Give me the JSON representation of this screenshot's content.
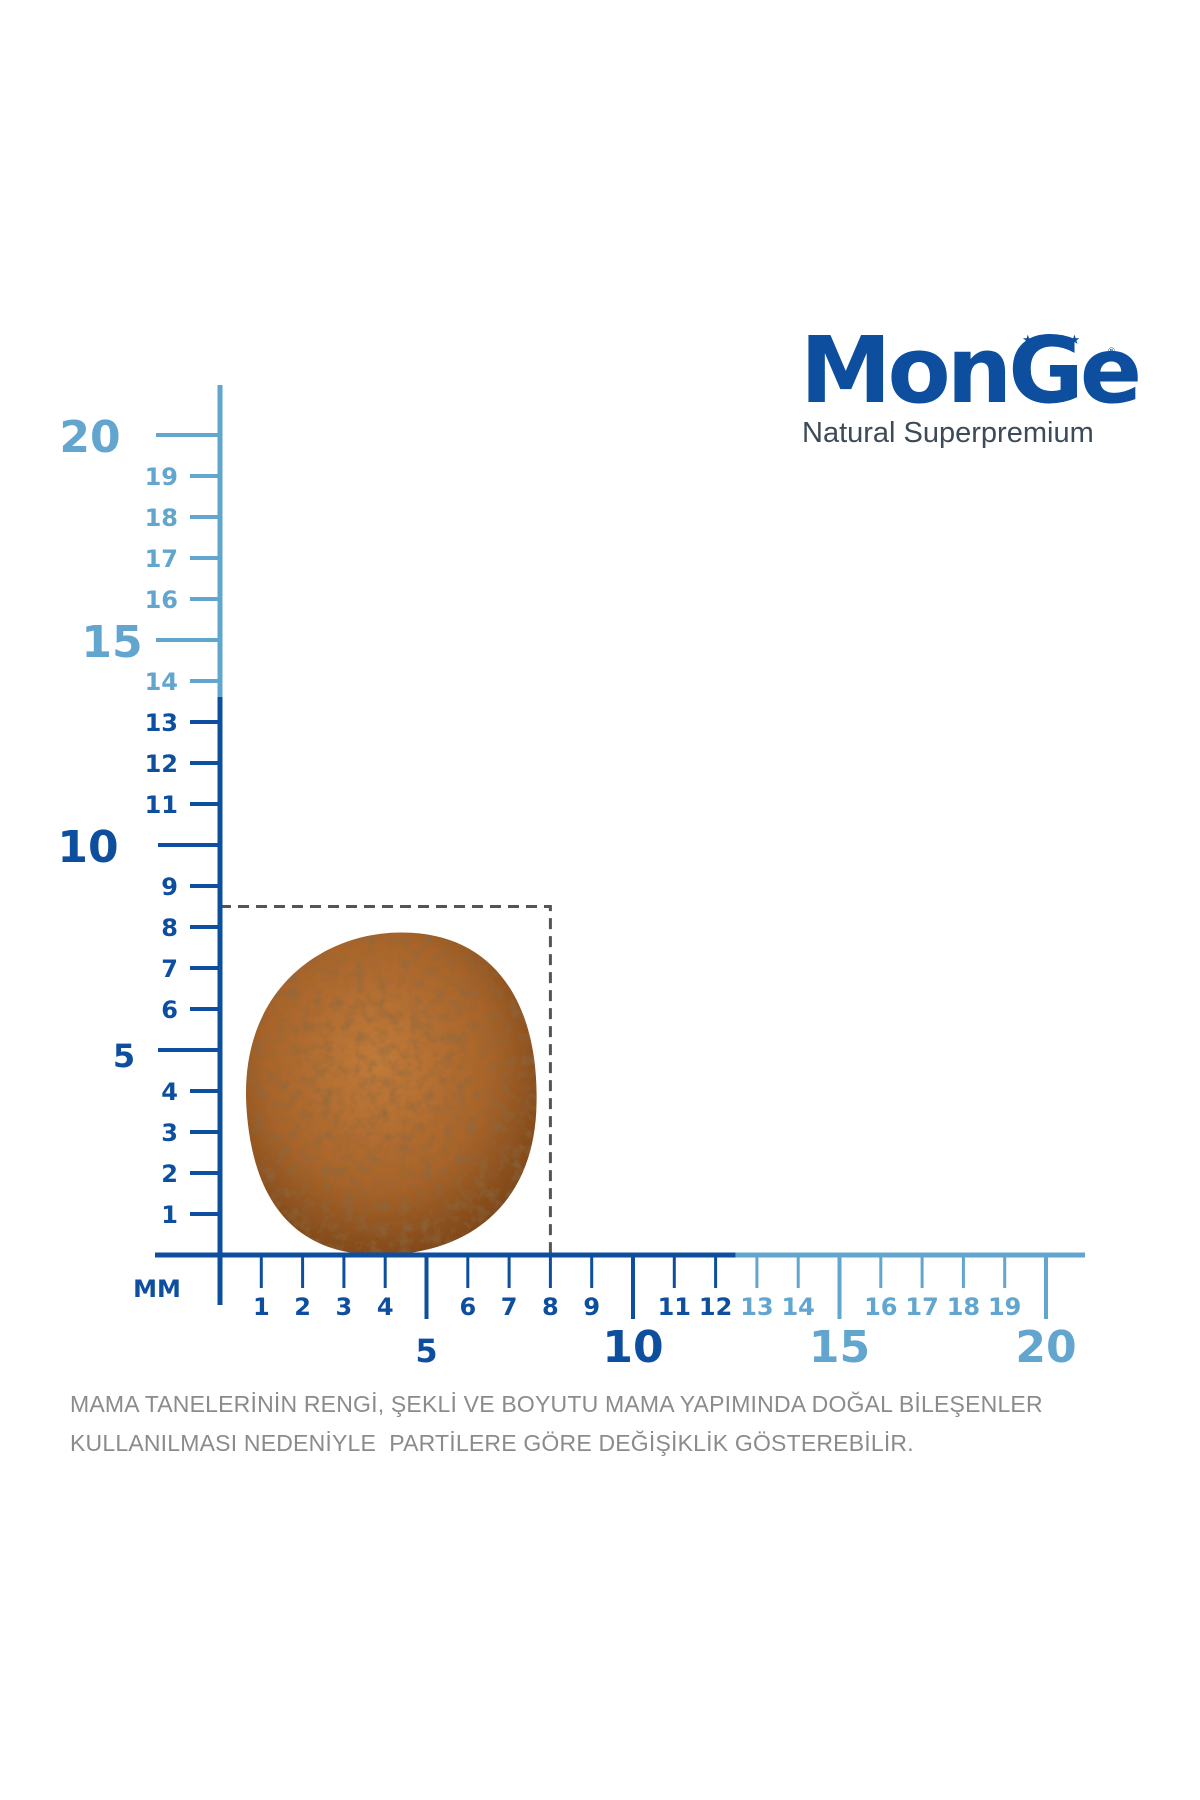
{
  "brand": {
    "name": "MonGe",
    "tagline": "Natural Superpremium",
    "stars": "★★★★★",
    "registered": "®"
  },
  "ruler": {
    "unit": "MM",
    "colors": {
      "dark": "#0d4f9e",
      "light": "#62a6cf",
      "kibble": "#a8642a",
      "outline": "#555555"
    },
    "y_axis": {
      "minor": [
        "1",
        "2",
        "3",
        "4",
        "6",
        "7",
        "8",
        "9",
        "11",
        "12",
        "13",
        "14",
        "16",
        "17",
        "18",
        "19"
      ],
      "major": [
        "5",
        "10",
        "15",
        "20"
      ],
      "dark_up_to": 13
    },
    "x_axis": {
      "minor": [
        "1",
        "2",
        "3",
        "4",
        "6",
        "7",
        "8",
        "9",
        "11",
        "12",
        "13",
        "14",
        "16",
        "17",
        "18",
        "19"
      ],
      "major": [
        "5",
        "10",
        "15",
        "20"
      ],
      "dark_up_to": 12
    }
  },
  "kibble": {
    "width_mm": 8,
    "height_mm": 8.5
  },
  "disclaimer": {
    "line1": "MAMA TANELERİNİN RENGİ, ŞEKLİ VE BOYUTU MAMA YAPIMINDA DOĞAL BİLEŞENLER",
    "line2": "KULLANILMASI NEDENİYLE  PARTİLERE GÖRE DEĞİŞİKLİK GÖSTEREBİLİR."
  }
}
